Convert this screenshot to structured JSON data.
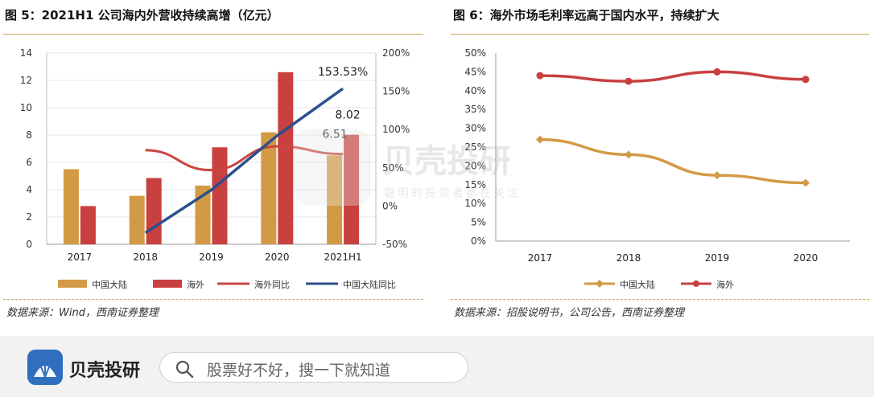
{
  "figure1": {
    "title": "图 5：2021H1 公司海内外营收持续高增（亿元）",
    "source": "数据来源：Wind，西南证券整理"
  },
  "figure2": {
    "title": "图 6：海外市场毛利率远高于国内水平，持续扩大",
    "source": "数据来源：招股说明书，公司公告，西南证券整理"
  },
  "watermark": {
    "brand": "贝壳投研",
    "slogan": "聪明的投资者都在关注"
  },
  "footer": {
    "brand": "贝壳投研",
    "search_placeholder": "股票好不好，搜一下就知道"
  },
  "colors": {
    "domestic": "#d39a45",
    "overseas": "#c8403f",
    "overseas_yoy": "#c9453f",
    "domestic_yoy": "#2d4f8b",
    "accent_rule": "#c9a25a",
    "logo_blue": "#2f6fbe"
  },
  "chart_data": [
    {
      "type": "bar",
      "categories": [
        "2017",
        "2018",
        "2019",
        "2020",
        "2021H1"
      ],
      "series": [
        {
          "name": "中国大陆",
          "kind": "bar",
          "axis": "left",
          "values": [
            5.5,
            3.55,
            4.3,
            8.2,
            6.51
          ]
        },
        {
          "name": "海外",
          "kind": "bar",
          "axis": "left",
          "values": [
            2.8,
            4.85,
            7.1,
            12.6,
            8.02
          ]
        },
        {
          "name": "海外同比",
          "kind": "line",
          "axis": "right",
          "values": [
            null,
            73,
            47,
            78,
            68
          ]
        },
        {
          "name": "中国大陆同比",
          "kind": "line",
          "axis": "right",
          "values": [
            null,
            -35,
            21,
            92,
            153.53
          ]
        }
      ],
      "data_labels": [
        {
          "series": "中国大陆同比",
          "index": 4,
          "text": "153.53%"
        },
        {
          "series": "海外",
          "index": 4,
          "text": "8.02"
        },
        {
          "series": "中国大陆",
          "index": 4,
          "text": "6.51"
        }
      ],
      "ylim": [
        0,
        14
      ],
      "yticks": [
        "0",
        "2",
        "4",
        "6",
        "8",
        "10",
        "12",
        "14"
      ],
      "y2lim": [
        -50,
        200
      ],
      "y2ticks": [
        "-50%",
        "0%",
        "50%",
        "100%",
        "150%",
        "200%"
      ],
      "grid": true,
      "legend": "bottom"
    },
    {
      "type": "line",
      "categories": [
        "2017",
        "2018",
        "2019",
        "2020"
      ],
      "series": [
        {
          "name": "中国大陆",
          "values": [
            27,
            23,
            17.5,
            15.5
          ]
        },
        {
          "name": "海外",
          "values": [
            44,
            42.5,
            45,
            43
          ]
        }
      ],
      "ylim": [
        0,
        50
      ],
      "yticks": [
        "0%",
        "5%",
        "10%",
        "15%",
        "20%",
        "25%",
        "30%",
        "35%",
        "40%",
        "45%",
        "50%"
      ],
      "grid": false,
      "legend": "bottom"
    }
  ]
}
